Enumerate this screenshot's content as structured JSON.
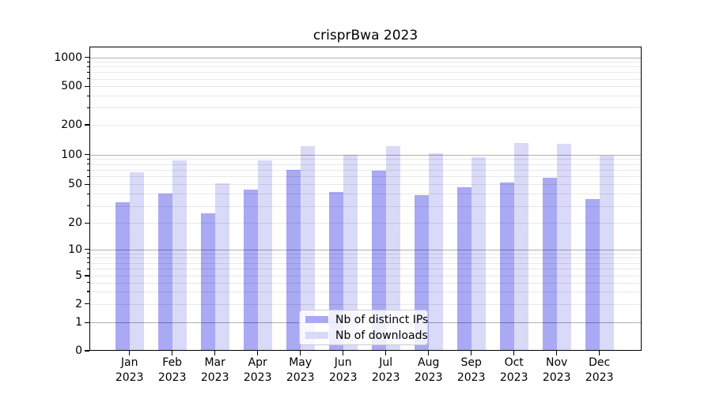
{
  "title": "crisprBwa 2023",
  "palette": {
    "distinct_ips": "#a9a9f4",
    "downloads": "#d9d9f8",
    "major_grid": "#b0b0b0",
    "minor_grid": "#e8e8e8",
    "spine": "#000000",
    "text": "#000000"
  },
  "legend": {
    "items": [
      {
        "label": "Nb of distinct IPs",
        "color": "#a9a9f4"
      },
      {
        "label": "Nb of downloads",
        "color": "#d9d9f8"
      }
    ]
  },
  "chart_data": {
    "type": "bar",
    "title": "crisprBwa 2023",
    "categories": [
      "Jan 2023",
      "Feb 2023",
      "Mar 2023",
      "Apr 2023",
      "May 2023",
      "Jun 2023",
      "Jul 2023",
      "Aug 2023",
      "Sep 2023",
      "Oct 2023",
      "Nov 2023",
      "Dec 2023"
    ],
    "series": [
      {
        "name": "Nb of distinct IPs",
        "color": "#a9a9f4",
        "values": [
          33,
          40,
          25,
          44,
          70,
          42,
          69,
          39,
          47,
          52,
          58,
          35
        ]
      },
      {
        "name": "Nb of downloads",
        "color": "#d9d9f8",
        "values": [
          66,
          88,
          51,
          88,
          121,
          100,
          121,
          103,
          95,
          130,
          129,
          97
        ]
      }
    ],
    "xlabel": "",
    "ylabel": "",
    "yscale": "symlog",
    "yticks": [
      0,
      1,
      2,
      5,
      10,
      20,
      50,
      100,
      200,
      500,
      1000
    ],
    "ylim": [
      0,
      1328
    ],
    "grid": "both",
    "legend_position": "lower center"
  }
}
